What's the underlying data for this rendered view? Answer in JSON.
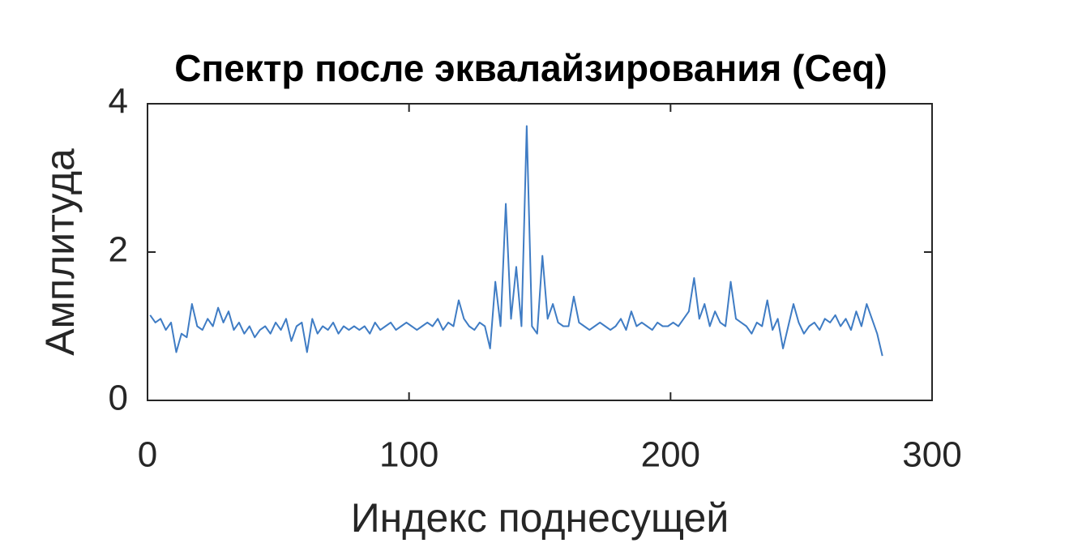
{
  "chart_data": {
    "type": "line",
    "title": "Спектр после эквалайзирования (Ceq)",
    "xlabel": "Индекс поднесущей",
    "ylabel": "Амплитуда",
    "x": [
      1,
      3,
      5,
      7,
      9,
      11,
      13,
      15,
      17,
      19,
      21,
      23,
      25,
      27,
      29,
      31,
      33,
      35,
      37,
      39,
      41,
      43,
      45,
      47,
      49,
      51,
      53,
      55,
      57,
      59,
      61,
      63,
      65,
      67,
      69,
      71,
      73,
      75,
      77,
      79,
      81,
      83,
      85,
      87,
      89,
      91,
      93,
      95,
      97,
      99,
      101,
      103,
      105,
      107,
      109,
      111,
      113,
      115,
      117,
      119,
      121,
      123,
      125,
      127,
      129,
      131,
      133,
      135,
      137,
      139,
      141,
      143,
      145,
      147,
      149,
      151,
      153,
      155,
      157,
      159,
      161,
      163,
      165,
      167,
      169,
      171,
      173,
      175,
      177,
      179,
      181,
      183,
      185,
      187,
      189,
      191,
      193,
      195,
      197,
      199,
      201,
      203,
      205,
      207,
      209,
      211,
      213,
      215,
      217,
      219,
      221,
      223,
      225,
      227,
      229,
      231,
      233,
      235,
      237,
      239,
      241,
      243,
      245,
      247,
      249,
      251,
      253,
      255,
      257,
      259,
      261,
      263,
      265,
      267,
      269,
      271,
      273,
      275,
      277,
      279,
      281
    ],
    "series": [
      {
        "name": "Ceq",
        "color": "#3f7cc4",
        "values": [
          1.15,
          1.05,
          1.1,
          0.95,
          1.05,
          0.65,
          0.9,
          0.85,
          1.3,
          1.0,
          0.95,
          1.1,
          1.0,
          1.25,
          1.05,
          1.2,
          0.95,
          1.05,
          0.9,
          1.0,
          0.85,
          0.95,
          1.0,
          0.9,
          1.05,
          0.95,
          1.1,
          0.8,
          1.0,
          1.05,
          0.65,
          1.1,
          0.9,
          1.0,
          0.95,
          1.05,
          0.9,
          1.0,
          0.95,
          1.0,
          0.95,
          1.0,
          0.9,
          1.05,
          0.95,
          1.0,
          1.05,
          0.95,
          1.0,
          1.05,
          1.0,
          0.95,
          1.0,
          1.05,
          1.0,
          1.1,
          0.95,
          1.05,
          1.0,
          1.35,
          1.1,
          1.0,
          0.95,
          1.05,
          1.0,
          0.7,
          1.6,
          1.0,
          2.65,
          1.1,
          1.8,
          1.0,
          3.7,
          1.0,
          0.9,
          1.95,
          1.1,
          1.3,
          1.05,
          1.0,
          1.0,
          1.4,
          1.05,
          1.0,
          0.95,
          1.0,
          1.05,
          1.0,
          0.95,
          1.0,
          1.1,
          0.95,
          1.2,
          1.0,
          1.05,
          1.0,
          0.95,
          1.05,
          1.0,
          1.0,
          1.05,
          1.0,
          1.1,
          1.2,
          1.65,
          1.1,
          1.3,
          1.0,
          1.2,
          1.05,
          1.0,
          1.6,
          1.1,
          1.05,
          1.0,
          0.9,
          1.05,
          1.0,
          1.35,
          0.95,
          1.1,
          0.7,
          1.0,
          1.3,
          1.05,
          0.9,
          1.0,
          1.05,
          0.95,
          1.1,
          1.05,
          1.15,
          1.0,
          1.1,
          0.95,
          1.2,
          1.0,
          1.3,
          1.1,
          0.9,
          0.6
        ]
      }
    ],
    "xlim": [
      0,
      300
    ],
    "xticks": [
      0,
      100,
      200,
      300
    ],
    "ylim": [
      0,
      4
    ],
    "yticks": [
      0,
      2,
      4
    ],
    "grid": false
  }
}
